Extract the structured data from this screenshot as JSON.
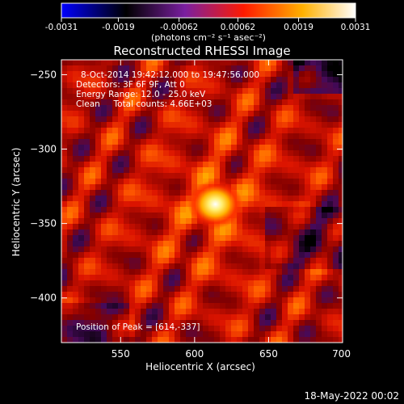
{
  "colorbar": {
    "ticks": [
      "-0.0031",
      "-0.0019",
      "-0.00062",
      "0.00062",
      "0.0019",
      "0.0031"
    ],
    "tick_values": [
      -0.0031,
      -0.0019,
      -0.00062,
      0.00062,
      0.0019,
      0.0031
    ],
    "unit_label": "(photons cm⁻² s⁻¹ asec⁻²)",
    "range": [
      -0.0031,
      0.0031
    ],
    "colormap": [
      "#0000ff",
      "#000000",
      "#7a1fa0",
      "#ff1a00",
      "#ffb000",
      "#ffffff"
    ]
  },
  "chart_data": {
    "type": "heatmap",
    "title": "Reconstructed RHESSI Image",
    "xlabel": "Heliocentric X (arcsec)",
    "ylabel": "Heliocentric Y (arcsec)",
    "xlim": [
      510,
      700
    ],
    "ylim": [
      -430,
      -240
    ],
    "xticks": [
      550,
      600,
      650,
      700
    ],
    "yticks": [
      -250,
      -300,
      -350,
      -400
    ],
    "xtick_labels": [
      "550",
      "600",
      "650",
      "700"
    ],
    "ytick_labels": [
      "−250",
      "−300",
      "−350",
      "−400"
    ],
    "peak": {
      "x": 614,
      "y": -337
    },
    "annotations": [
      "8-Oct-2014 19:42:12.000 to 19:47:56.000",
      "Detectors: 3F 6F 9F, Att 0",
      "Energy Range: 12.0 - 25.0 keV",
      "Clean     Total counts: 4.66E+03"
    ],
    "peak_label": "Position of Peak = [614,-337]"
  },
  "footer": {
    "date": "18-May-2022 00:02"
  }
}
